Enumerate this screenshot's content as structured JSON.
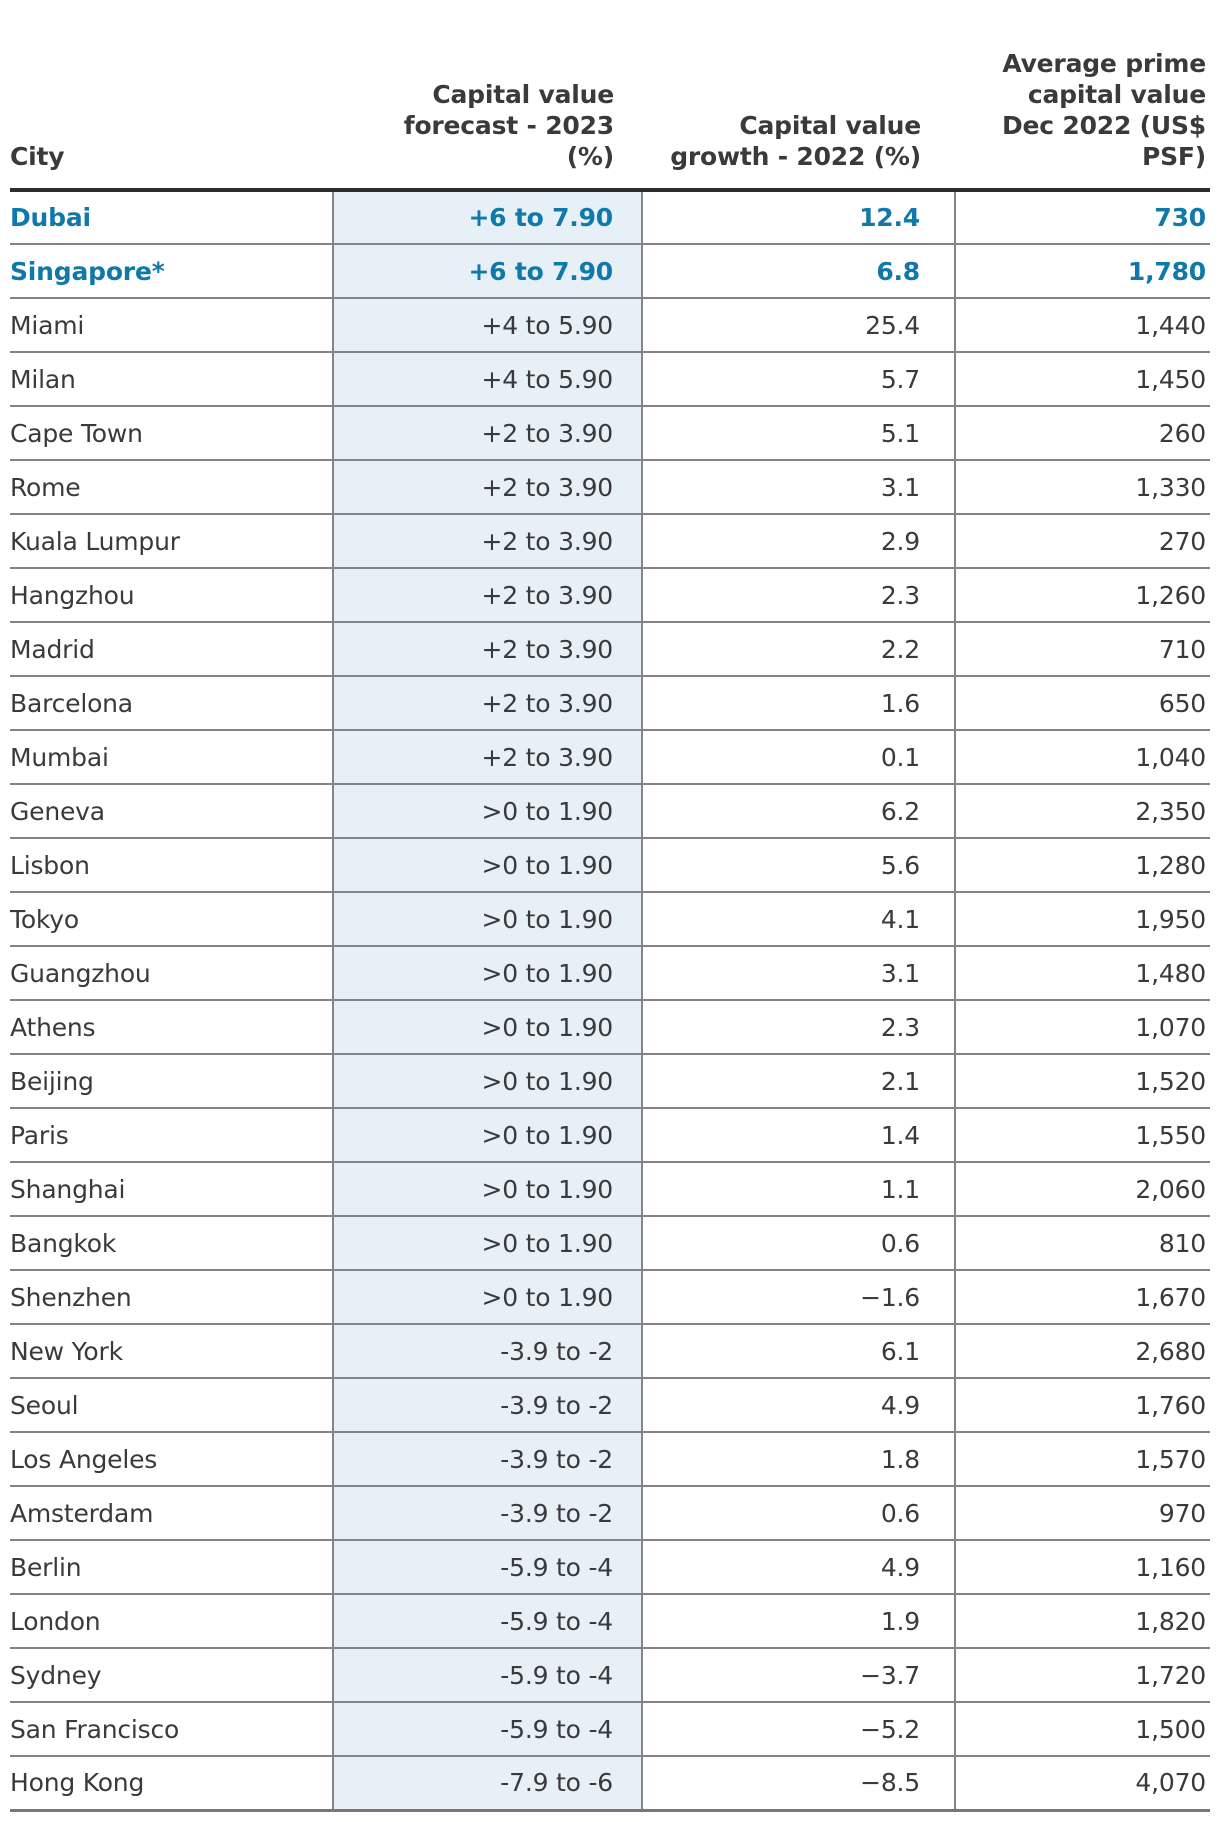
{
  "colors": {
    "highlight_blue": "#0f79a9",
    "forecast_column_bg": "#e6f0f6",
    "body_text": "#3a3a3c",
    "row_divider": "#828487",
    "header_rule": "#2d2d30",
    "bottom_rule": "#77777a",
    "page_background": "#ffffff"
  },
  "chart_data": {
    "type": "table",
    "columns": [
      {
        "id": "city",
        "label": "City",
        "header_display": "City",
        "align": "left"
      },
      {
        "id": "forecast",
        "label": "Capital value forecast - 2023 (%)",
        "header_display": "Capital value\nforecast - 2023\n(%)",
        "align": "right"
      },
      {
        "id": "growth",
        "label": "Capital value growth - 2022 (%)",
        "header_display": "Capital value\ngrowth - 2022 (%)",
        "align": "right"
      },
      {
        "id": "value",
        "label": "Average prime capital value Dec 2022 (US$ PSF)",
        "header_display": "Average prime\ncapital value\nDec 2022 (US$\nPSF)",
        "align": "right"
      }
    ],
    "rows": [
      {
        "city": "Dubai",
        "forecast": "+6 to 7.90",
        "growth": "12.4",
        "value": "730",
        "highlight": true
      },
      {
        "city": "Singapore*",
        "forecast": "+6 to 7.90",
        "growth": "6.8",
        "value": "1,780",
        "highlight": true
      },
      {
        "city": "Miami",
        "forecast": "+4 to 5.90",
        "growth": "25.4",
        "value": "1,440",
        "highlight": false
      },
      {
        "city": "Milan",
        "forecast": "+4 to 5.90",
        "growth": "5.7",
        "value": "1,450",
        "highlight": false
      },
      {
        "city": "Cape Town",
        "forecast": "+2 to 3.90",
        "growth": "5.1",
        "value": "260",
        "highlight": false
      },
      {
        "city": "Rome",
        "forecast": "+2 to 3.90",
        "growth": "3.1",
        "value": "1,330",
        "highlight": false
      },
      {
        "city": "Kuala Lumpur",
        "forecast": "+2 to 3.90",
        "growth": "2.9",
        "value": "270",
        "highlight": false
      },
      {
        "city": "Hangzhou",
        "forecast": "+2 to 3.90",
        "growth": "2.3",
        "value": "1,260",
        "highlight": false
      },
      {
        "city": "Madrid",
        "forecast": "+2 to 3.90",
        "growth": "2.2",
        "value": "710",
        "highlight": false
      },
      {
        "city": "Barcelona",
        "forecast": "+2 to 3.90",
        "growth": "1.6",
        "value": "650",
        "highlight": false
      },
      {
        "city": "Mumbai",
        "forecast": "+2 to 3.90",
        "growth": "0.1",
        "value": "1,040",
        "highlight": false
      },
      {
        "city": "Geneva",
        "forecast": ">0 to 1.90",
        "growth": "6.2",
        "value": "2,350",
        "highlight": false
      },
      {
        "city": "Lisbon",
        "forecast": ">0 to 1.90",
        "growth": "5.6",
        "value": "1,280",
        "highlight": false
      },
      {
        "city": "Tokyo",
        "forecast": ">0 to 1.90",
        "growth": "4.1",
        "value": "1,950",
        "highlight": false
      },
      {
        "city": "Guangzhou",
        "forecast": ">0 to 1.90",
        "growth": "3.1",
        "value": "1,480",
        "highlight": false
      },
      {
        "city": "Athens",
        "forecast": ">0 to 1.90",
        "growth": "2.3",
        "value": "1,070",
        "highlight": false
      },
      {
        "city": "Beijing",
        "forecast": ">0 to 1.90",
        "growth": "2.1",
        "value": "1,520",
        "highlight": false
      },
      {
        "city": "Paris",
        "forecast": ">0 to 1.90",
        "growth": "1.4",
        "value": "1,550",
        "highlight": false
      },
      {
        "city": "Shanghai",
        "forecast": ">0 to 1.90",
        "growth": "1.1",
        "value": "2,060",
        "highlight": false
      },
      {
        "city": "Bangkok",
        "forecast": ">0 to 1.90",
        "growth": "0.6",
        "value": "810",
        "highlight": false
      },
      {
        "city": "Shenzhen",
        "forecast": ">0 to 1.90",
        "growth": "−1.6",
        "value": "1,670",
        "highlight": false
      },
      {
        "city": "New York",
        "forecast": "-3.9 to -2",
        "growth": "6.1",
        "value": "2,680",
        "highlight": false
      },
      {
        "city": "Seoul",
        "forecast": "-3.9 to -2",
        "growth": "4.9",
        "value": "1,760",
        "highlight": false
      },
      {
        "city": "Los Angeles",
        "forecast": "-3.9 to -2",
        "growth": "1.8",
        "value": "1,570",
        "highlight": false
      },
      {
        "city": "Amsterdam",
        "forecast": "-3.9 to -2",
        "growth": "0.6",
        "value": "970",
        "highlight": false
      },
      {
        "city": "Berlin",
        "forecast": "-5.9 to -4",
        "growth": "4.9",
        "value": "1,160",
        "highlight": false
      },
      {
        "city": "London",
        "forecast": "-5.9 to -4",
        "growth": "1.9",
        "value": "1,820",
        "highlight": false
      },
      {
        "city": "Sydney",
        "forecast": "-5.9 to -4",
        "growth": "−3.7",
        "value": "1,720",
        "highlight": false
      },
      {
        "city": "San Francisco",
        "forecast": "-5.9 to -4",
        "growth": "−5.2",
        "value": "1,500",
        "highlight": false
      },
      {
        "city": "Hong Kong",
        "forecast": "-7.9 to -6",
        "growth": "−8.5",
        "value": "4,070",
        "highlight": false
      }
    ]
  }
}
